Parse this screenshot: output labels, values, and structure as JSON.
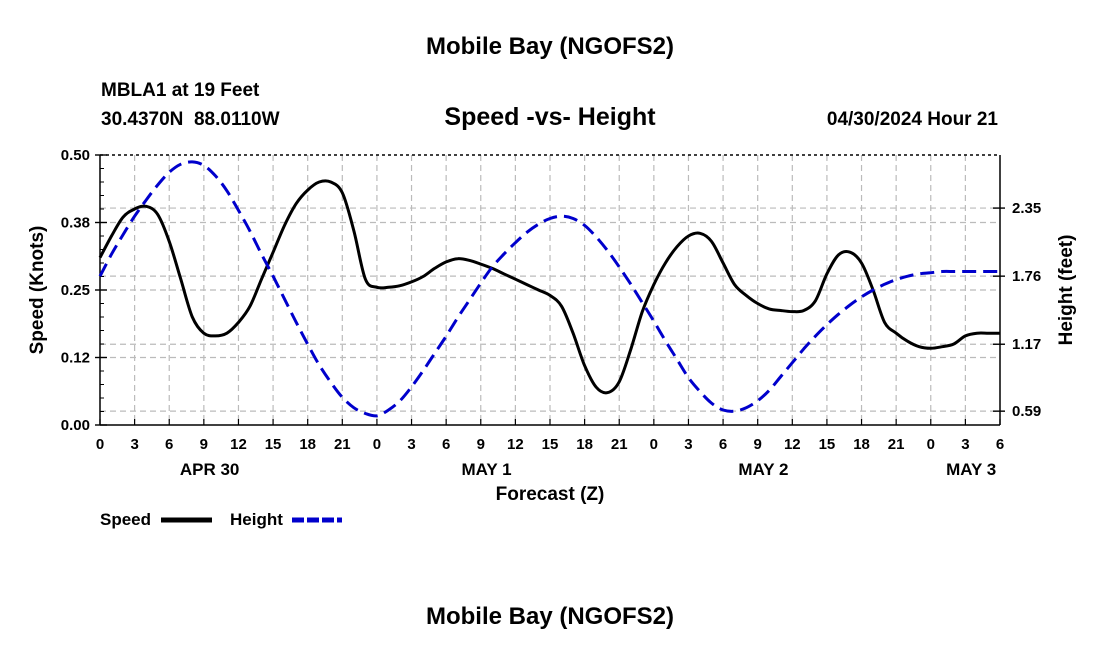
{
  "page_title": "Mobile Bay (NGOFS2)",
  "footer_title": "Mobile Bay (NGOFS2)",
  "station": {
    "name_line": "MBLA1 at 19 Feet",
    "coords_line": "30.4370N  88.0110W"
  },
  "timestamp": "04/30/2024 Hour 21",
  "chart_data": {
    "type": "line",
    "title": "Speed -vs- Height",
    "xlabel": "Forecast (Z)",
    "ylabel_left": "Speed (Knots)",
    "ylabel_right": "Height (feet)",
    "x_unit": "hours since 04/30/2024 00Z",
    "xlim": [
      0,
      78
    ],
    "ylim_left": [
      0.0,
      0.5
    ],
    "y_ticks_left": [
      "0.00",
      "0.12",
      "0.25",
      "0.38",
      "0.50"
    ],
    "y_tick_values_left": [
      0.0,
      0.125,
      0.25,
      0.375,
      0.5
    ],
    "y_ticks_right": [
      "0.59",
      "1.17",
      "1.76",
      "2.35"
    ],
    "y_tick_values_right": [
      0.59,
      1.17,
      1.76,
      2.35
    ],
    "ylim_right": [
      0.47,
      2.81
    ],
    "x_tick_values": [
      0,
      3,
      6,
      9,
      12,
      15,
      18,
      21,
      24,
      27,
      30,
      33,
      36,
      39,
      42,
      45,
      48,
      51,
      54,
      57,
      60,
      63,
      66,
      69,
      72,
      75,
      78
    ],
    "x_tick_labels": [
      "0",
      "3",
      "6",
      "9",
      "12",
      "15",
      "18",
      "21",
      "0",
      "3",
      "6",
      "9",
      "12",
      "15",
      "18",
      "21",
      "0",
      "3",
      "6",
      "9",
      "12",
      "15",
      "18",
      "21",
      "0",
      "3",
      "6"
    ],
    "date_labels": [
      {
        "label": "APR 30",
        "x": 9.5
      },
      {
        "label": "MAY 1",
        "x": 33.5
      },
      {
        "label": "MAY 2",
        "x": 57.5
      },
      {
        "label": "MAY 3",
        "x": 75.5
      }
    ],
    "grid": true,
    "legend": "bottom-left",
    "series": [
      {
        "name": "Speed",
        "axis": "left",
        "color": "#000000",
        "style": "solid",
        "x": [
          0,
          1,
          2,
          3,
          4,
          5,
          6,
          7,
          8,
          9,
          10,
          11,
          12,
          13,
          14,
          15,
          16,
          17,
          18,
          19,
          20,
          21,
          22,
          23,
          24,
          25,
          26,
          27,
          28,
          29,
          30,
          31,
          32,
          33,
          34,
          35,
          36,
          37,
          38,
          39,
          40,
          41,
          42,
          43,
          44,
          45,
          46,
          47,
          48,
          49,
          50,
          51,
          52,
          53,
          54,
          55,
          56,
          57,
          58,
          59,
          60,
          61,
          62,
          63,
          64,
          65,
          66,
          67,
          68,
          69,
          70,
          71,
          72,
          73,
          74,
          75,
          76,
          77,
          78
        ],
        "values": [
          0.31,
          0.35,
          0.385,
          0.4,
          0.405,
          0.39,
          0.34,
          0.27,
          0.2,
          0.17,
          0.165,
          0.17,
          0.19,
          0.22,
          0.27,
          0.32,
          0.37,
          0.41,
          0.435,
          0.45,
          0.45,
          0.43,
          0.36,
          0.27,
          0.255,
          0.255,
          0.258,
          0.265,
          0.275,
          0.29,
          0.302,
          0.308,
          0.305,
          0.298,
          0.29,
          0.28,
          0.27,
          0.26,
          0.25,
          0.24,
          0.22,
          0.17,
          0.11,
          0.07,
          0.06,
          0.08,
          0.14,
          0.21,
          0.26,
          0.3,
          0.33,
          0.35,
          0.355,
          0.34,
          0.3,
          0.26,
          0.24,
          0.225,
          0.215,
          0.212,
          0.21,
          0.212,
          0.23,
          0.28,
          0.315,
          0.32,
          0.3,
          0.25,
          0.19,
          0.17,
          0.155,
          0.145,
          0.142,
          0.145,
          0.15,
          0.165,
          0.17,
          0.17,
          0.17
        ]
      },
      {
        "name": "Height",
        "axis": "right",
        "color": "#0000cc",
        "style": "dashed",
        "x": [
          0,
          1,
          2,
          3,
          4,
          5,
          6,
          7,
          8,
          9,
          10,
          11,
          12,
          13,
          14,
          15,
          16,
          17,
          18,
          19,
          20,
          21,
          22,
          23,
          24,
          25,
          26,
          27,
          28,
          29,
          30,
          31,
          32,
          33,
          34,
          35,
          36,
          37,
          38,
          39,
          40,
          41,
          42,
          43,
          44,
          45,
          46,
          47,
          48,
          49,
          50,
          51,
          52,
          53,
          54,
          55,
          56,
          57,
          58,
          59,
          60,
          61,
          62,
          63,
          64,
          65,
          66,
          67,
          68,
          69,
          70,
          71,
          72,
          73,
          74,
          75,
          76,
          77,
          78
        ],
        "values": [
          1.76,
          1.95,
          2.12,
          2.28,
          2.42,
          2.55,
          2.66,
          2.73,
          2.75,
          2.72,
          2.63,
          2.5,
          2.33,
          2.15,
          1.95,
          1.76,
          1.56,
          1.36,
          1.17,
          0.99,
          0.84,
          0.71,
          0.62,
          0.57,
          0.55,
          0.6,
          0.68,
          0.8,
          0.94,
          1.09,
          1.24,
          1.4,
          1.55,
          1.7,
          1.84,
          1.95,
          2.05,
          2.14,
          2.21,
          2.26,
          2.28,
          2.26,
          2.2,
          2.1,
          1.98,
          1.84,
          1.69,
          1.53,
          1.37,
          1.2,
          1.04,
          0.88,
          0.76,
          0.66,
          0.6,
          0.59,
          0.62,
          0.68,
          0.77,
          0.89,
          1.01,
          1.13,
          1.24,
          1.34,
          1.43,
          1.51,
          1.58,
          1.64,
          1.69,
          1.73,
          1.76,
          1.78,
          1.79,
          1.8,
          1.8,
          1.8,
          1.8,
          1.8,
          1.8
        ]
      }
    ]
  },
  "legend_items": [
    {
      "label": "Speed",
      "color": "#000000",
      "style": "solid"
    },
    {
      "label": "Height",
      "color": "#0000cc",
      "style": "dashed"
    }
  ]
}
